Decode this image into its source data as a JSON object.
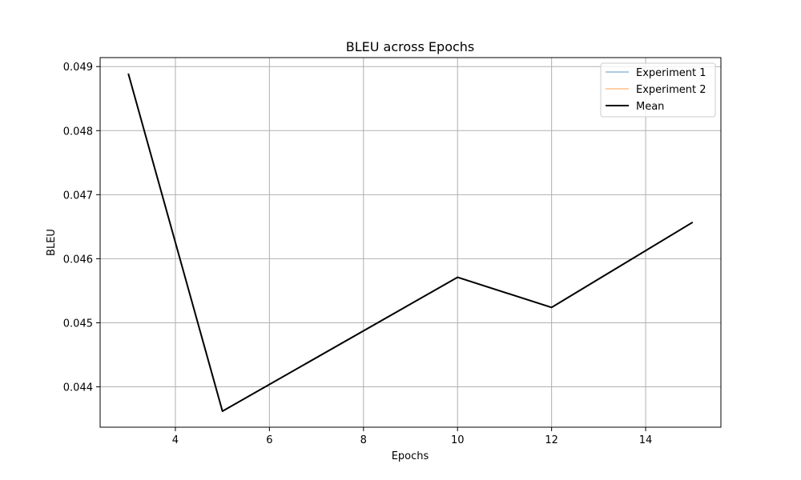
{
  "chart_data": {
    "type": "line",
    "title": "BLEU across Epochs",
    "xlabel": "Epochs",
    "ylabel": "BLEU",
    "xlim": [
      2.4,
      15.6
    ],
    "ylim": [
      0.04337,
      0.04914
    ],
    "x": [
      3,
      5,
      10,
      12,
      15
    ],
    "x_ticks": [
      4,
      6,
      8,
      10,
      12,
      14
    ],
    "y_ticks": [
      0.044,
      0.045,
      0.046,
      0.047,
      0.048,
      0.049
    ],
    "y_tick_labels": [
      "0.044",
      "0.045",
      "0.046",
      "0.047",
      "0.048",
      "0.049"
    ],
    "grid": true,
    "legend_position": "top-right",
    "series": [
      {
        "name": "Experiment 1",
        "color": "#1f77b4",
        "alpha": 0.5,
        "values": [
          0.04889,
          0.04362,
          0.04571,
          0.04524,
          0.04657
        ]
      },
      {
        "name": "Experiment 2",
        "color": "#ff7f0e",
        "alpha": 0.5,
        "values": [
          0.04889,
          0.04362,
          0.04571,
          0.04524,
          0.04657
        ]
      },
      {
        "name": "Mean",
        "color": "#000000",
        "alpha": 1.0,
        "values": [
          0.04889,
          0.04362,
          0.04571,
          0.04524,
          0.04657
        ]
      }
    ]
  }
}
